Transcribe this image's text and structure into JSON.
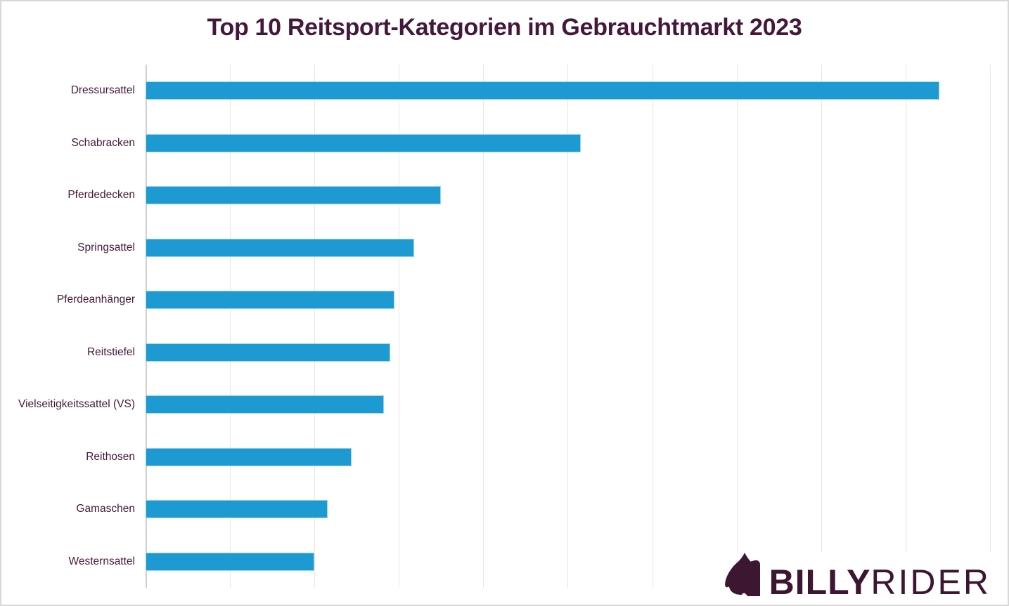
{
  "page": {
    "background": "#ffffff",
    "frame_border_color": "#d8d8d8"
  },
  "chart_data": {
    "type": "bar",
    "orientation": "horizontal",
    "title": "Top 10 Reitsport-Kategorien im Gebrauchtmarkt 2023",
    "categories": [
      "Dressursattel",
      "Schabracken",
      "Pferdedecken",
      "Springsattel",
      "Pferdeanhänger",
      "Reitstiefel",
      "Vielseitigkeitssattel (VS)",
      "Reithosen",
      "Gamaschen",
      "Westernsattel"
    ],
    "values": [
      9.4,
      5.15,
      3.5,
      3.18,
      2.95,
      2.9,
      2.82,
      2.44,
      2.16,
      2.0
    ],
    "units": "relative units; x-axis gridlines are unlabeled, 1 unit = 1 gridline interval",
    "xlim": [
      0,
      10.2
    ],
    "gridline_interval": 1,
    "grid": "vertical-only",
    "x_tick_labels_visible": false,
    "legend": "none",
    "bar_color": "#1d9ad2",
    "title_color": "#44183a",
    "label_color": "#44183a",
    "gridline_color": "#e6e6e6",
    "axis_line_color": "#cfcfcf"
  },
  "logo": {
    "brand_bold": "BILLY",
    "brand_light": "RIDER",
    "color": "#3d1632",
    "icon": "horse-head-icon"
  }
}
